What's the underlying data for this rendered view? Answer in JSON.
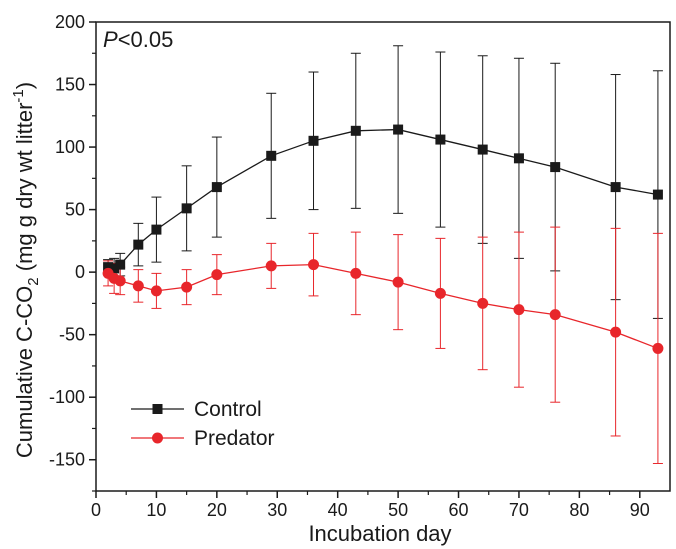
{
  "chart_data": {
    "type": "line",
    "annotation": {
      "italic_part": "P",
      "rest": "<0.05"
    },
    "xlabel": "Incubation day",
    "ylabel": {
      "prefix": "Cumulative C-CO",
      "subscript": "2",
      "middle": " (mg g dry wt litter",
      "superscript": "-1",
      "suffix": ")"
    },
    "xlim": [
      0,
      95
    ],
    "ylim": [
      -175,
      200
    ],
    "x_ticks": [
      0,
      10,
      20,
      30,
      40,
      50,
      60,
      70,
      80,
      90
    ],
    "y_ticks": [
      -150,
      -100,
      -50,
      0,
      50,
      100,
      150,
      200
    ],
    "x_tick_labels": [
      "0",
      "10",
      "20",
      "30",
      "40",
      "50",
      "60",
      "70",
      "80",
      "90"
    ],
    "y_tick_labels": [
      "-150",
      "-100",
      "-50",
      "0",
      "50",
      "100",
      "150",
      "200"
    ],
    "grid": false,
    "legend_position": "bottom-left",
    "series": [
      {
        "name": "Control",
        "color": "#1a1a1a",
        "marker": "square",
        "x": [
          2,
          3,
          4,
          7,
          10,
          15,
          20,
          29,
          36,
          43,
          50,
          57,
          64,
          70,
          76,
          86,
          93
        ],
        "y": [
          4,
          3,
          6,
          22,
          34,
          51,
          68,
          93,
          105,
          113,
          114,
          106,
          98,
          91,
          84,
          68,
          62
        ],
        "err": [
          6,
          8,
          9,
          17,
          26,
          34,
          40,
          50,
          55,
          62,
          67,
          70,
          75,
          80,
          83,
          90,
          99
        ]
      },
      {
        "name": "Predator",
        "color": "#e8262b",
        "marker": "circle",
        "x": [
          2,
          3,
          4,
          7,
          10,
          15,
          20,
          29,
          36,
          43,
          50,
          57,
          64,
          70,
          76,
          86,
          93
        ],
        "y": [
          -1,
          -5,
          -7,
          -11,
          -15,
          -12,
          -2,
          5,
          6,
          -1,
          -8,
          -17,
          -25,
          -30,
          -34,
          -48,
          -61
        ],
        "err": [
          10,
          12,
          11,
          13,
          14,
          14,
          16,
          18,
          25,
          33,
          38,
          44,
          53,
          62,
          70,
          83,
          92
        ]
      }
    ]
  }
}
